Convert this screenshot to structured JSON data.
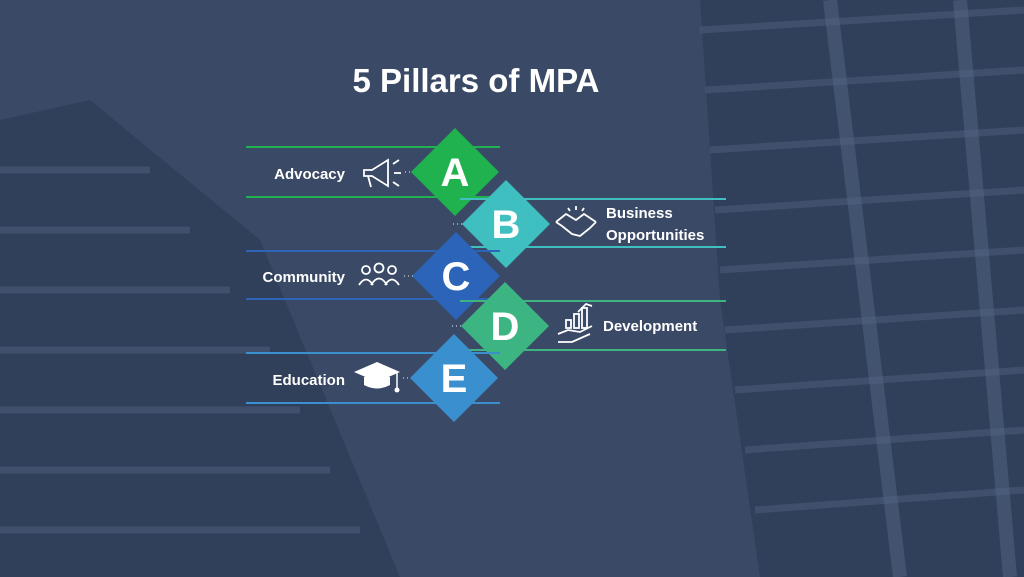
{
  "title": "5 Pillars of MPA",
  "pillars": [
    {
      "letter": "A",
      "label": "Advocacy",
      "label_lines": [
        "Advocacy"
      ],
      "side": "left",
      "color": "#1fb24f",
      "icon": "megaphone-icon"
    },
    {
      "letter": "B",
      "label": "Business Opportunities",
      "label_lines": [
        "Business",
        "Opportunities"
      ],
      "side": "right",
      "color": "#3fbfbf",
      "icon": "handshake-icon"
    },
    {
      "letter": "C",
      "label": "Community",
      "label_lines": [
        "Community"
      ],
      "side": "left",
      "color": "#2b64b8",
      "icon": "people-group-icon"
    },
    {
      "letter": "D",
      "label": "Development",
      "label_lines": [
        "Development"
      ],
      "side": "right",
      "color": "#3db582",
      "icon": "growth-hand-icon"
    },
    {
      "letter": "E",
      "label": "Education",
      "label_lines": [
        "Education"
      ],
      "side": "left",
      "color": "#3a8fcf",
      "icon": "graduation-cap-icon"
    }
  ]
}
